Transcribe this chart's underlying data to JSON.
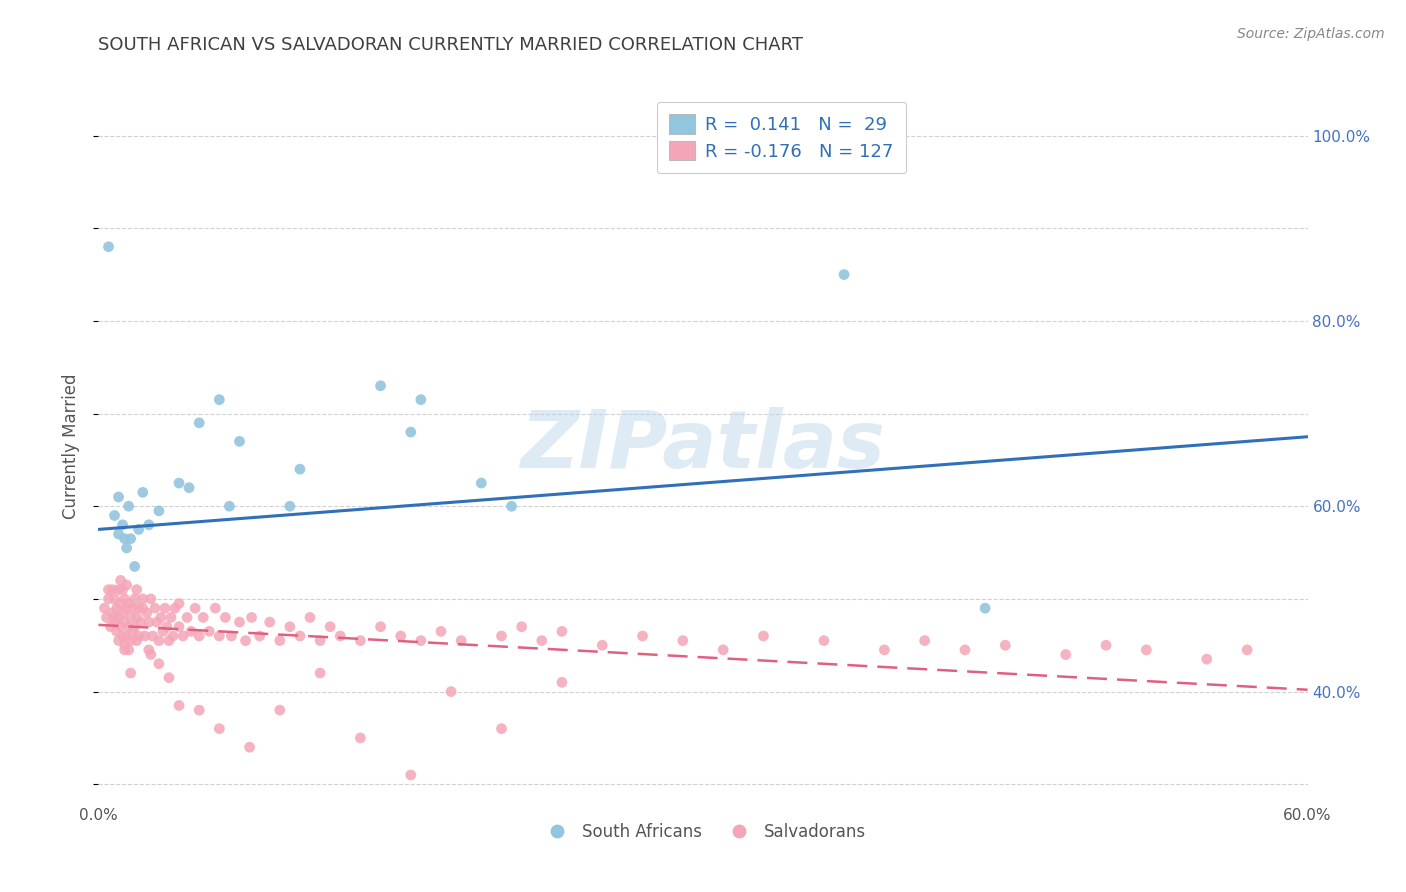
{
  "title": "SOUTH AFRICAN VS SALVADORAN CURRENTLY MARRIED CORRELATION CHART",
  "source": "Source: ZipAtlas.com",
  "ylabel": "Currently Married",
  "xlim": [
    0.0,
    0.6
  ],
  "ylim": [
    0.28,
    1.05
  ],
  "x_ticks": [
    0.0,
    0.1,
    0.2,
    0.3,
    0.4,
    0.5,
    0.6
  ],
  "x_tick_labels": [
    "0.0%",
    "",
    "",
    "",
    "",
    "",
    "60.0%"
  ],
  "y_ticks_right": [
    0.4,
    0.6,
    0.8,
    1.0
  ],
  "y_tick_labels_right": [
    "40.0%",
    "60.0%",
    "80.0%",
    "100.0%"
  ],
  "blue_color": "#92c5de",
  "pink_color": "#f4a6b8",
  "blue_line_color": "#3070b8",
  "pink_line_color": "#e06080",
  "background_color": "#ffffff",
  "grid_color": "#cccccc",
  "watermark": "ZIPatlas",
  "blue_line_x0": 0.0,
  "blue_line_y0": 0.575,
  "blue_line_x1": 0.6,
  "blue_line_y1": 0.675,
  "pink_line_x0": 0.0,
  "pink_line_y0": 0.472,
  "pink_line_x1": 0.6,
  "pink_line_y1": 0.402,
  "scatter_blue_x": [
    0.005,
    0.008,
    0.01,
    0.01,
    0.012,
    0.013,
    0.014,
    0.015,
    0.016,
    0.018,
    0.02,
    0.022,
    0.025,
    0.03,
    0.04,
    0.045,
    0.05,
    0.06,
    0.065,
    0.07,
    0.095,
    0.1,
    0.14,
    0.155,
    0.16,
    0.19,
    0.205,
    0.37,
    0.44
  ],
  "scatter_blue_y": [
    0.88,
    0.59,
    0.57,
    0.61,
    0.58,
    0.565,
    0.555,
    0.6,
    0.565,
    0.535,
    0.575,
    0.615,
    0.58,
    0.595,
    0.625,
    0.62,
    0.69,
    0.715,
    0.6,
    0.67,
    0.6,
    0.64,
    0.73,
    0.68,
    0.715,
    0.625,
    0.6,
    0.85,
    0.49
  ],
  "scatter_pink_x": [
    0.003,
    0.004,
    0.005,
    0.006,
    0.007,
    0.007,
    0.008,
    0.008,
    0.009,
    0.009,
    0.01,
    0.01,
    0.01,
    0.011,
    0.011,
    0.012,
    0.012,
    0.012,
    0.013,
    0.013,
    0.013,
    0.014,
    0.014,
    0.014,
    0.015,
    0.015,
    0.015,
    0.016,
    0.016,
    0.017,
    0.017,
    0.018,
    0.018,
    0.019,
    0.019,
    0.02,
    0.02,
    0.021,
    0.022,
    0.023,
    0.024,
    0.025,
    0.025,
    0.026,
    0.027,
    0.028,
    0.029,
    0.03,
    0.031,
    0.032,
    0.033,
    0.034,
    0.035,
    0.036,
    0.037,
    0.038,
    0.04,
    0.04,
    0.042,
    0.044,
    0.046,
    0.048,
    0.05,
    0.052,
    0.055,
    0.058,
    0.06,
    0.063,
    0.066,
    0.07,
    0.073,
    0.076,
    0.08,
    0.085,
    0.09,
    0.095,
    0.1,
    0.105,
    0.11,
    0.115,
    0.12,
    0.13,
    0.14,
    0.15,
    0.16,
    0.17,
    0.18,
    0.2,
    0.21,
    0.22,
    0.23,
    0.25,
    0.27,
    0.29,
    0.31,
    0.33,
    0.36,
    0.39,
    0.41,
    0.43,
    0.45,
    0.48,
    0.5,
    0.52,
    0.55,
    0.57,
    0.005,
    0.008,
    0.011,
    0.013,
    0.016,
    0.019,
    0.022,
    0.026,
    0.03,
    0.035,
    0.04,
    0.05,
    0.06,
    0.075,
    0.09,
    0.11,
    0.13,
    0.155,
    0.175,
    0.2,
    0.23
  ],
  "scatter_pink_y": [
    0.49,
    0.48,
    0.5,
    0.47,
    0.485,
    0.51,
    0.475,
    0.5,
    0.465,
    0.49,
    0.48,
    0.455,
    0.51,
    0.47,
    0.495,
    0.46,
    0.485,
    0.51,
    0.45,
    0.475,
    0.5,
    0.46,
    0.49,
    0.515,
    0.445,
    0.47,
    0.495,
    0.455,
    0.48,
    0.465,
    0.49,
    0.47,
    0.5,
    0.455,
    0.48,
    0.46,
    0.49,
    0.475,
    0.5,
    0.46,
    0.485,
    0.445,
    0.475,
    0.5,
    0.46,
    0.49,
    0.475,
    0.455,
    0.48,
    0.465,
    0.49,
    0.47,
    0.455,
    0.48,
    0.46,
    0.49,
    0.47,
    0.495,
    0.46,
    0.48,
    0.465,
    0.49,
    0.46,
    0.48,
    0.465,
    0.49,
    0.46,
    0.48,
    0.46,
    0.475,
    0.455,
    0.48,
    0.46,
    0.475,
    0.455,
    0.47,
    0.46,
    0.48,
    0.455,
    0.47,
    0.46,
    0.455,
    0.47,
    0.46,
    0.455,
    0.465,
    0.455,
    0.46,
    0.47,
    0.455,
    0.465,
    0.45,
    0.46,
    0.455,
    0.445,
    0.46,
    0.455,
    0.445,
    0.455,
    0.445,
    0.45,
    0.44,
    0.45,
    0.445,
    0.435,
    0.445,
    0.51,
    0.48,
    0.52,
    0.445,
    0.42,
    0.51,
    0.49,
    0.44,
    0.43,
    0.415,
    0.385,
    0.38,
    0.36,
    0.34,
    0.38,
    0.42,
    0.35,
    0.31,
    0.4,
    0.36,
    0.41
  ]
}
